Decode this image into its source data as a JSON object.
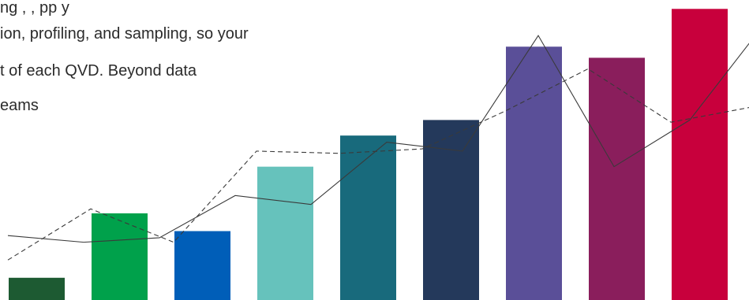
{
  "text_lines": [
    "ng              ,  ,          pp      y",
    "ion, profiling, and sampling, so your",
    "t of each QVD. Beyond data",
    "eams"
  ],
  "illustration": {
    "bars": [
      {
        "value": 1.0,
        "color": "#1d5a32"
      },
      {
        "value": 3.9,
        "color": "#00a14b"
      },
      {
        "value": 3.1,
        "color": "#005eb8"
      },
      {
        "value": 6.0,
        "color": "#66c2bc"
      },
      {
        "value": 7.4,
        "color": "#186a7c"
      },
      {
        "value": 8.1,
        "color": "#24395b"
      },
      {
        "value": 11.4,
        "color": "#5a4f98"
      },
      {
        "value": 10.9,
        "color": "#8a1e5c"
      },
      {
        "value": 13.1,
        "color": "#c8003c"
      }
    ],
    "solid_line": [
      2.9,
      2.6,
      2.8,
      4.7,
      4.3,
      7.1,
      6.7,
      11.9,
      6.0,
      8.1,
      12.5
    ],
    "dashed_line": [
      1.8,
      4.1,
      2.6,
      6.7,
      6.6,
      6.8,
      8.5,
      10.4,
      8.0,
      8.7
    ],
    "line_color": "#3a3a3a",
    "max_value": 13.5
  }
}
